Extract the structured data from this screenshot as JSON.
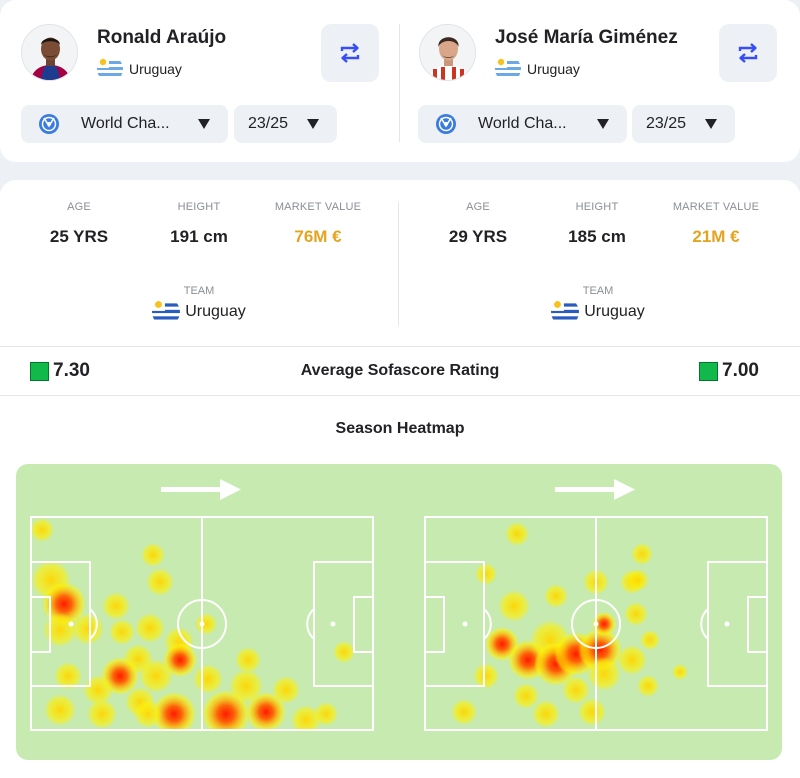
{
  "players": [
    {
      "name": "Ronald Araújo",
      "country": "Uruguay",
      "competition": "World Cha...",
      "season": "23/25",
      "age_label": "AGE",
      "age": "25 YRS",
      "height_label": "HEIGHT",
      "height": "191 cm",
      "market_value_label": "MARKET VALUE",
      "market_value": "76M €",
      "team_label": "TEAM",
      "team": "Uruguay",
      "rating": "7.30",
      "jersey_color": "#a50044"
    },
    {
      "name": "José María Giménez",
      "country": "Uruguay",
      "competition": "World Cha...",
      "season": "23/25",
      "age_label": "AGE",
      "age": "29 YRS",
      "height_label": "HEIGHT",
      "height": "185 cm",
      "market_value_label": "MARKET VALUE",
      "market_value": "21M €",
      "team_label": "TEAM",
      "team": "Uruguay",
      "rating": "7.00",
      "jersey_color": "#cb3524"
    }
  ],
  "rating_title": "Average Sofascore Rating",
  "heatmap_title": "Season Heatmap",
  "colors": {
    "accent_blue": "#374df5",
    "market_value": "#e5a41f",
    "rating_green": "#11b84a",
    "pitch": "#c6eab0"
  },
  "icons": {
    "swap": "swap-arrows-icon",
    "competition": "world-championship-logo",
    "dropdown": "triangle-down-icon",
    "direction": "attack-direction-arrow"
  }
}
